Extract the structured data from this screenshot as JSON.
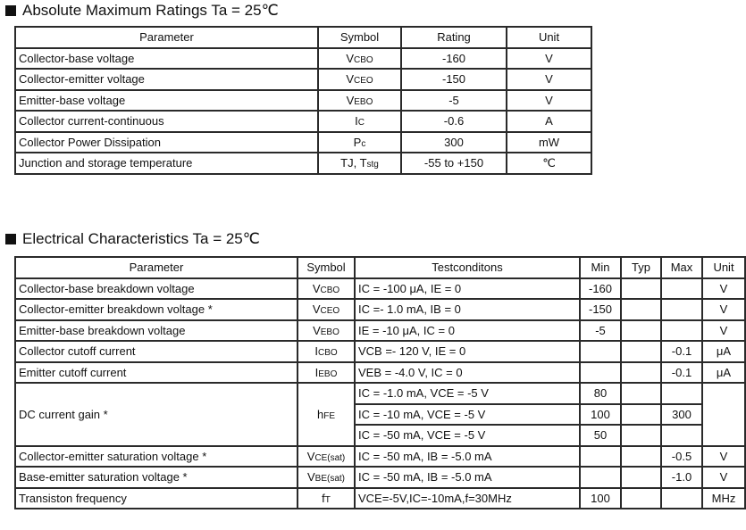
{
  "section1": {
    "title": "Absolute Maximum Ratings Ta = 25℃",
    "headers": [
      "Parameter",
      "Symbol",
      "Rating",
      "Unit"
    ],
    "rows": [
      {
        "parameter": "Collector-base voltage",
        "symbol": {
          "main": "V",
          "sub": "CBO"
        },
        "rating": "-160",
        "unit": "V"
      },
      {
        "parameter": "Collector-emitter voltage",
        "symbol": {
          "main": "V",
          "sub": "CEO"
        },
        "rating": "-150",
        "unit": "V"
      },
      {
        "parameter": "Emitter-base voltage",
        "symbol": {
          "main": "V",
          "sub": "EBO"
        },
        "rating": "-5",
        "unit": "V"
      },
      {
        "parameter": "Collector current-continuous",
        "symbol": {
          "main": "I",
          "sub": "C"
        },
        "rating": "-0.6",
        "unit": "A"
      },
      {
        "parameter": "Collector Power Dissipation",
        "symbol": {
          "main": "P",
          "sub": "c"
        },
        "rating": "300",
        "unit": "mW"
      },
      {
        "parameter": "Junction and storage temperature",
        "symbol": {
          "main": "TJ, T",
          "sub": "stg"
        },
        "rating": "-55 to +150",
        "unit": "℃"
      }
    ]
  },
  "section2": {
    "title": "Electrical Characteristics Ta = 25℃",
    "headers": [
      "Parameter",
      "Symbol",
      "Testconditons",
      "Min",
      "Typ",
      "Max",
      "Unit"
    ],
    "rows": [
      {
        "parameter": "Collector-base breakdown voltage",
        "symbol": {
          "main": "V",
          "sub": "CBO"
        },
        "conditions": [
          "IC = -100  μA, IE = 0"
        ],
        "min": [
          "-160"
        ],
        "typ": [
          ""
        ],
        "max": [
          ""
        ],
        "unit": "V"
      },
      {
        "parameter": "Collector-emitter breakdown voltage *",
        "symbol": {
          "main": "V",
          "sub": "CEO"
        },
        "conditions": [
          "IC =- 1.0 mA, IB = 0"
        ],
        "min": [
          "-150"
        ],
        "typ": [
          ""
        ],
        "max": [
          ""
        ],
        "unit": "V"
      },
      {
        "parameter": "Emitter-base breakdown voltage",
        "symbol": {
          "main": "V",
          "sub": "EBO"
        },
        "conditions": [
          "IE = -10  μA, IC = 0"
        ],
        "min": [
          "-5"
        ],
        "typ": [
          ""
        ],
        "max": [
          ""
        ],
        "unit": "V"
      },
      {
        "parameter": "Collector cutoff current",
        "symbol": {
          "main": "I",
          "sub": "CBO"
        },
        "conditions": [
          "VCB =- 120 V, IE = 0"
        ],
        "min": [
          ""
        ],
        "typ": [
          ""
        ],
        "max": [
          "-0.1"
        ],
        "unit": "μA"
      },
      {
        "parameter": "Emitter cutoff current",
        "symbol": {
          "main": "I",
          "sub": "EBO"
        },
        "conditions": [
          "VEB = -4.0 V, IC = 0"
        ],
        "min": [
          ""
        ],
        "typ": [
          ""
        ],
        "max": [
          "-0.1"
        ],
        "unit": "μA"
      },
      {
        "parameter": "DC current gain *",
        "symbol": {
          "main": "h",
          "sub": "FE"
        },
        "conditions": [
          "IC = -1.0 mA, VCE = -5 V",
          "IC = -10 mA, VCE = -5 V",
          "IC = -50 mA, VCE = -5 V"
        ],
        "min": [
          "80",
          "100",
          "50"
        ],
        "typ": [
          "",
          "",
          ""
        ],
        "max": [
          "",
          "300",
          ""
        ],
        "unit": ""
      },
      {
        "parameter": "Collector-emitter saturation voltage *",
        "symbol": {
          "main": "V",
          "sub": "CE(sat)"
        },
        "conditions": [
          "IC = -50 mA, IB = -5.0 mA"
        ],
        "min": [
          ""
        ],
        "typ": [
          ""
        ],
        "max": [
          "-0.5"
        ],
        "unit": "V"
      },
      {
        "parameter": "Base-emitter saturation voltage *",
        "symbol": {
          "main": "V",
          "sub": "BE(sat)"
        },
        "conditions": [
          "IC = -50 mA, IB = -5.0 mA"
        ],
        "min": [
          ""
        ],
        "typ": [
          ""
        ],
        "max": [
          "-1.0"
        ],
        "unit": "V"
      },
      {
        "parameter": "Transiston frequency",
        "symbol": {
          "main": "f",
          "sub": "T"
        },
        "conditions": [
          "VCE=-5V,IC=-10mA,f=30MHz"
        ],
        "min": [
          "100"
        ],
        "typ": [
          ""
        ],
        "max": [
          ""
        ],
        "unit": "MHz"
      }
    ]
  }
}
